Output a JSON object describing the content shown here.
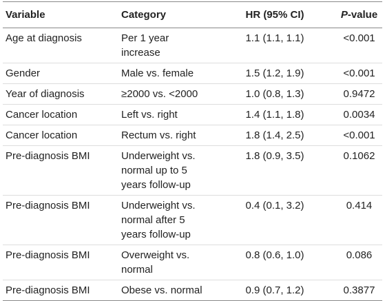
{
  "table": {
    "header": [
      "Variable",
      "Category",
      "HR (95% CI)",
      "P-value"
    ],
    "rows": [
      [
        "Age at diagnosis",
        [
          "Per 1 year",
          "increase"
        ],
        "1.1 (1.1, 1.1)",
        "<0.001"
      ],
      [
        "Gender",
        [
          "Male vs. female"
        ],
        "1.5 (1.2, 1.9)",
        "<0.001"
      ],
      [
        "Year of diagnosis",
        [
          "≥2000 vs. <2000"
        ],
        "1.0 (0.8, 1.3)",
        "0.9472"
      ],
      [
        "Cancer location",
        [
          "Left vs. right"
        ],
        "1.4 (1.1, 1.8)",
        "0.0034"
      ],
      [
        "Cancer location",
        [
          "Rectum vs. right"
        ],
        "1.8 (1.4, 2.5)",
        "<0.001"
      ],
      [
        "Pre-diagnosis BMI",
        [
          "Underweight vs.",
          "normal up to 5",
          "years follow-up"
        ],
        "1.8 (0.9, 3.5)",
        "0.1062"
      ],
      [
        "Pre-diagnosis BMI",
        [
          "Underweight vs.",
          "normal after 5",
          "years follow-up"
        ],
        "0.4 (0.1, 3.2)",
        "0.414"
      ],
      [
        "Pre-diagnosis BMI",
        [
          "Overweight vs.",
          "normal"
        ],
        "0.8 (0.6, 1.0)",
        "0.086"
      ],
      [
        "Pre-diagnosis BMI",
        [
          "Obese vs. normal"
        ],
        "0.9 (0.7, 1.2)",
        "0.3877"
      ]
    ]
  }
}
